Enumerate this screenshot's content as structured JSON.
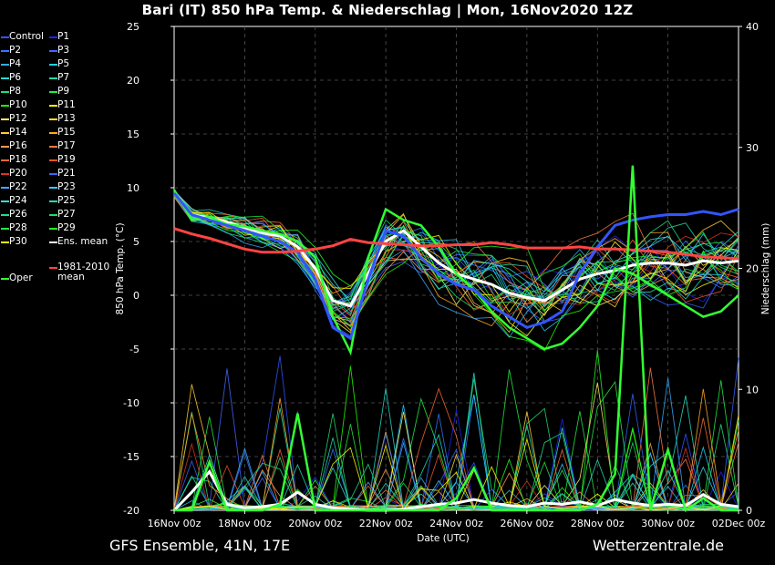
{
  "title": "Bari  (IT)  850 hPa Temp. & Niederschlag | Mon, 16Nov2020 12Z",
  "footer": {
    "left": "GFS Ensemble, 41N, 17E",
    "right": "Wetterzentrale.de"
  },
  "legend": {
    "members": [
      {
        "label": "Control",
        "color": "#3355ff"
      },
      {
        "label": "P1",
        "color": "#2222ff"
      },
      {
        "label": "P2",
        "color": "#3377ff"
      },
      {
        "label": "P3",
        "color": "#4466ff"
      },
      {
        "label": "P4",
        "color": "#33aaff"
      },
      {
        "label": "P5",
        "color": "#22ccff"
      },
      {
        "label": "P6",
        "color": "#22ddcc"
      },
      {
        "label": "P7",
        "color": "#22ddaa"
      },
      {
        "label": "P8",
        "color": "#22dd77"
      },
      {
        "label": "P9",
        "color": "#22ee44"
      },
      {
        "label": "P10",
        "color": "#22ff00"
      },
      {
        "label": "P11",
        "color": "#ffff00"
      },
      {
        "label": "P12",
        "color": "#ffee66"
      },
      {
        "label": "P13",
        "color": "#ffdd33"
      },
      {
        "label": "P14",
        "color": "#ffcc33"
      },
      {
        "label": "P15",
        "color": "#ffaa22"
      },
      {
        "label": "P16",
        "color": "#ff9955"
      },
      {
        "label": "P17",
        "color": "#ff7744"
      },
      {
        "label": "P18",
        "color": "#ff6633"
      },
      {
        "label": "P19",
        "color": "#ee5522"
      },
      {
        "label": "P20",
        "color": "#dd3322"
      },
      {
        "label": "P21",
        "color": "#3366ff"
      },
      {
        "label": "P22",
        "color": "#44aaff"
      },
      {
        "label": "P23",
        "color": "#33ccff"
      },
      {
        "label": "P24",
        "color": "#33dddd"
      },
      {
        "label": "P25",
        "color": "#22ddbb"
      },
      {
        "label": "P26",
        "color": "#22dd88"
      },
      {
        "label": "P27",
        "color": "#22dd66"
      },
      {
        "label": "P28",
        "color": "#22ee44"
      },
      {
        "label": "P29",
        "color": "#22ff22"
      },
      {
        "label": "P30",
        "color": "#ffff00"
      }
    ],
    "ens_mean": {
      "label": "Ens. mean",
      "color": "#ffffff"
    },
    "oper": {
      "label": "Oper",
      "color": "#33ff33"
    },
    "clim": {
      "line1": "1981-2010",
      "line2": "mean",
      "color": "#ff4444"
    }
  },
  "chart_data": {
    "type": "line",
    "xlabel": "Date (UTC)",
    "ylabel": "850 hPa Temp. (°C)",
    "ylabel_right": "Niederschlag (mm)",
    "xlim_hours": [
      0,
      384
    ],
    "ylim": [
      -20,
      25
    ],
    "ylim_right": [
      0,
      40
    ],
    "x_tick_labels": [
      "16Nov 00z",
      "18Nov 00z",
      "20Nov 00z",
      "22Nov 00z",
      "24Nov 00z",
      "26Nov 00z",
      "28Nov 00z",
      "30Nov 00z",
      "02Dec 00z"
    ],
    "y_ticks": [
      -20,
      -15,
      -10,
      -5,
      0,
      5,
      10,
      15,
      20,
      25
    ],
    "y_ticks_right": [
      0,
      10,
      20,
      30,
      40
    ],
    "grid": true,
    "series": [
      {
        "name": "Ens. mean",
        "color": "#ffffff",
        "x": [
          0,
          12,
          24,
          36,
          48,
          60,
          72,
          84,
          96,
          108,
          120,
          132,
          144,
          156,
          168,
          180,
          192,
          204,
          216,
          228,
          240,
          252,
          264,
          276,
          288,
          300,
          312,
          324,
          336,
          348,
          360,
          372,
          384
        ],
        "values": [
          9.5,
          7.5,
          7.2,
          6.8,
          6.3,
          5.8,
          5.5,
          4.5,
          2.5,
          -0.5,
          -1.0,
          2.0,
          5.0,
          6.0,
          4.5,
          3.0,
          2.0,
          1.5,
          1.0,
          0.2,
          -0.2,
          -0.5,
          0.5,
          1.5,
          2.0,
          2.3,
          2.8,
          3.0,
          3.0,
          2.8,
          3.2,
          3.0,
          3.2
        ]
      },
      {
        "name": "Oper",
        "color": "#33ff33",
        "x": [
          0,
          12,
          24,
          36,
          48,
          60,
          72,
          84,
          96,
          108,
          120,
          132,
          144,
          156,
          168,
          180,
          192,
          204,
          216,
          228,
          240,
          252,
          264,
          276,
          288,
          300,
          312,
          324,
          336,
          348,
          360,
          372,
          384
        ],
        "values": [
          9.8,
          7.0,
          7.3,
          6.6,
          6.4,
          6.0,
          5.7,
          5.0,
          3.5,
          -2.0,
          -5.3,
          3.5,
          8.0,
          7.0,
          6.5,
          4.5,
          2.0,
          0.5,
          -1.5,
          -3.0,
          -4.0,
          -5.0,
          -4.5,
          -3.0,
          -1.0,
          2.5,
          2.0,
          1.0,
          0.0,
          -1.0,
          -2.0,
          -1.5,
          0.0
        ]
      },
      {
        "name": "Control",
        "color": "#3355ff",
        "x": [
          0,
          12,
          24,
          36,
          48,
          60,
          72,
          84,
          96,
          108,
          120,
          132,
          144,
          156,
          168,
          180,
          192,
          204,
          216,
          228,
          240,
          252,
          264,
          276,
          288,
          300,
          312,
          324,
          336,
          348,
          360,
          372,
          384
        ],
        "values": [
          9.5,
          7.5,
          7.0,
          6.5,
          6.0,
          5.5,
          5.0,
          4.0,
          1.5,
          -3.0,
          -4.0,
          1.5,
          6.0,
          5.5,
          3.5,
          2.0,
          1.0,
          0.5,
          -1.0,
          -2.0,
          -3.0,
          -2.5,
          -1.5,
          2.0,
          4.5,
          6.5,
          7.0,
          7.3,
          7.5,
          7.5,
          7.8,
          7.5,
          8.0
        ]
      },
      {
        "name": "1981-2010 mean",
        "color": "#ff4444",
        "x": [
          0,
          12,
          24,
          36,
          48,
          60,
          72,
          84,
          96,
          108,
          120,
          132,
          144,
          156,
          168,
          180,
          192,
          204,
          216,
          228,
          240,
          252,
          264,
          276,
          288,
          300,
          312,
          324,
          336,
          348,
          360,
          372,
          384
        ],
        "values": [
          6.2,
          5.7,
          5.3,
          4.8,
          4.3,
          4.0,
          4.0,
          4.1,
          4.3,
          4.6,
          5.2,
          4.9,
          4.8,
          4.7,
          4.6,
          4.6,
          4.7,
          4.7,
          4.9,
          4.7,
          4.4,
          4.4,
          4.4,
          4.5,
          4.3,
          4.3,
          4.2,
          4.1,
          4.0,
          3.8,
          3.6,
          3.5,
          3.4
        ]
      }
    ],
    "precip_series": [
      {
        "name": "Ens. mean",
        "color": "#ffffff",
        "x": [
          0,
          12,
          24,
          36,
          48,
          60,
          72,
          84,
          96,
          108,
          120,
          132,
          144,
          156,
          168,
          180,
          192,
          204,
          216,
          228,
          240,
          252,
          264,
          276,
          288,
          300,
          312,
          324,
          336,
          348,
          360,
          372,
          384
        ],
        "values": [
          0,
          1.5,
          3.2,
          0.5,
          0.2,
          0.3,
          0.5,
          1.5,
          0.5,
          0.2,
          0.1,
          0,
          0,
          0.1,
          0.3,
          0.5,
          0.6,
          0.9,
          0.6,
          0.4,
          0.3,
          0.6,
          0.5,
          0.7,
          0.4,
          0.9,
          0.6,
          0.4,
          0.5,
          0.4,
          1.3,
          0.5,
          0.3
        ]
      },
      {
        "name": "Oper",
        "color": "#33ff33",
        "x": [
          0,
          12,
          24,
          36,
          48,
          60,
          72,
          84,
          96,
          108,
          120,
          132,
          144,
          156,
          168,
          180,
          192,
          204,
          216,
          228,
          240,
          252,
          264,
          276,
          288,
          300,
          312,
          324,
          336,
          348,
          360,
          372,
          384
        ],
        "values": [
          0,
          0,
          4.0,
          0,
          0,
          0,
          0.5,
          8.0,
          0,
          0,
          0,
          0,
          0,
          0,
          0,
          0,
          1.0,
          3.5,
          0,
          0,
          0,
          0,
          0,
          0,
          0.5,
          3.0,
          28.5,
          0,
          5.0,
          0,
          1.0,
          0,
          0
        ]
      }
    ]
  }
}
